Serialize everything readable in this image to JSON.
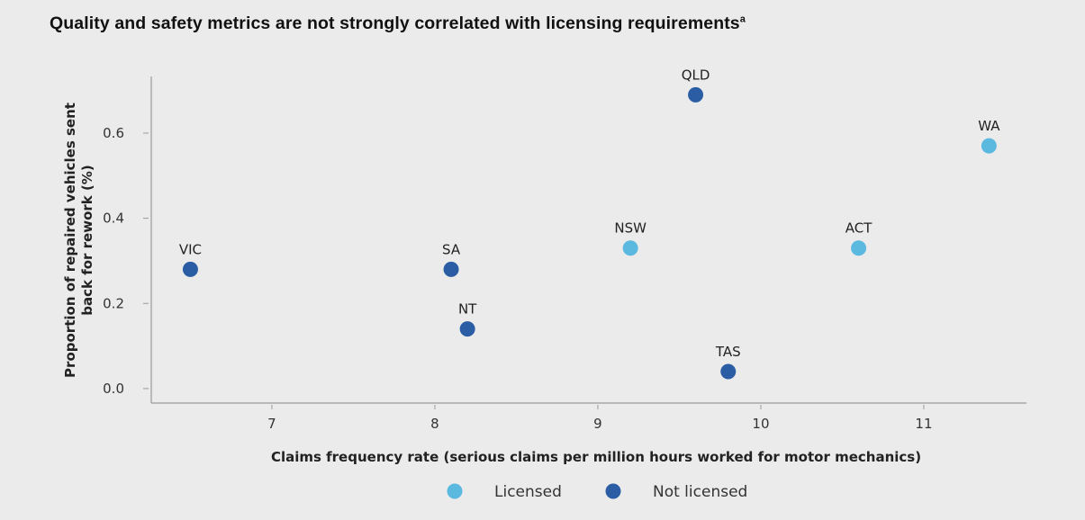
{
  "chart_data": {
    "type": "scatter",
    "title": "Quality and safety metrics are not strongly correlated with licensing requirements",
    "title_superscript": "a",
    "xlabel": "Claims frequency rate (serious claims per million hours worked for motor mechanics)",
    "ylabel": [
      "Proportion of repaired vehicles sent",
      "back for rework (%)"
    ],
    "xlim": [
      6.26,
      11.63
    ],
    "ylim": [
      -0.034,
      0.733
    ],
    "xticks": [
      7,
      8,
      9,
      10,
      11
    ],
    "yticks": [
      "0.0",
      "0.2",
      "0.4",
      "0.6"
    ],
    "grid": false,
    "legend_position": "bottom",
    "colors": {
      "Licensed": "#5bb8df",
      "Not licensed": "#2a5da3"
    },
    "series": [
      {
        "name": "Licensed",
        "points": [
          {
            "label": "NSW",
            "x": 9.2,
            "y": 0.33
          },
          {
            "label": "ACT",
            "x": 10.6,
            "y": 0.33
          },
          {
            "label": "WA",
            "x": 11.4,
            "y": 0.57
          }
        ]
      },
      {
        "name": "Not licensed",
        "points": [
          {
            "label": "VIC",
            "x": 6.5,
            "y": 0.28
          },
          {
            "label": "SA",
            "x": 8.1,
            "y": 0.28
          },
          {
            "label": "NT",
            "x": 8.2,
            "y": 0.14
          },
          {
            "label": "QLD",
            "x": 9.6,
            "y": 0.69
          },
          {
            "label": "TAS",
            "x": 9.8,
            "y": 0.04
          }
        ]
      }
    ]
  }
}
